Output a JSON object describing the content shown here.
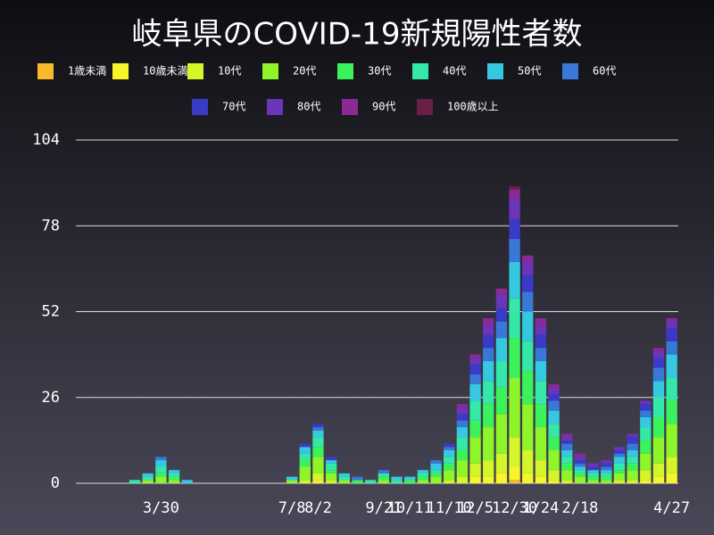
{
  "chart_data": {
    "type": "stacked-bar",
    "title": "岐阜県のCOVID-19新規陽性者数",
    "categories": [
      null,
      null,
      null,
      null,
      null,
      null,
      "3/30",
      null,
      null,
      null,
      null,
      null,
      null,
      null,
      null,
      null,
      "7/8",
      null,
      "8/2",
      null,
      null,
      null,
      null,
      "9/21",
      null,
      "10/11",
      null,
      null,
      "11/10",
      null,
      "12/5",
      null,
      null,
      "12/30",
      null,
      "1/24",
      null,
      null,
      "2/18",
      null,
      null,
      null,
      null,
      null,
      null,
      "4/27"
    ],
    "series": [
      {
        "name": "1歳未満",
        "color": "#f9b92a",
        "values": [
          0,
          0,
          0,
          0,
          0,
          0,
          0,
          0,
          0,
          0,
          0,
          0,
          0,
          0,
          0,
          0,
          0,
          0,
          0,
          0,
          0,
          0,
          0,
          0,
          0,
          0,
          0,
          0,
          0,
          0,
          0,
          0,
          0,
          1,
          0,
          0,
          0,
          0,
          0,
          0,
          0,
          0,
          0,
          0,
          0,
          0
        ]
      },
      {
        "name": "10歳未満",
        "color": "#f7f52a",
        "values": [
          0,
          0,
          0,
          0,
          0,
          0,
          0,
          0,
          0,
          0,
          0,
          0,
          0,
          0,
          0,
          0,
          0,
          0,
          1,
          0,
          0,
          0,
          0,
          0,
          0,
          0,
          0,
          0,
          0,
          0,
          2,
          2,
          3,
          4,
          3,
          2,
          1,
          0,
          0,
          0,
          0,
          0,
          0,
          1,
          2,
          3
        ]
      },
      {
        "name": "10代",
        "color": "#d5f52a",
        "values": [
          0,
          0,
          0,
          0,
          0,
          0,
          0,
          0,
          0,
          0,
          0,
          0,
          0,
          0,
          0,
          0,
          0,
          1,
          2,
          1,
          0,
          0,
          0,
          0,
          0,
          0,
          0,
          0,
          1,
          2,
          4,
          5,
          6,
          9,
          7,
          5,
          3,
          1,
          0,
          0,
          0,
          1,
          1,
          3,
          4,
          5
        ]
      },
      {
        "name": "20代",
        "color": "#8ef52a",
        "values": [
          0,
          0,
          0,
          0,
          0,
          1,
          2,
          1,
          0,
          0,
          0,
          0,
          0,
          0,
          0,
          0,
          1,
          4,
          5,
          2,
          1,
          0,
          0,
          1,
          0,
          0,
          1,
          2,
          3,
          5,
          8,
          10,
          12,
          18,
          14,
          10,
          6,
          3,
          2,
          1,
          1,
          2,
          3,
          5,
          8,
          10
        ]
      },
      {
        "name": "30代",
        "color": "#3cf25a",
        "values": [
          0,
          0,
          0,
          0,
          0,
          0,
          1,
          1,
          0,
          0,
          0,
          0,
          0,
          0,
          0,
          0,
          0,
          2,
          3,
          1,
          0,
          1,
          0,
          1,
          0,
          1,
          1,
          1,
          2,
          3,
          5,
          7,
          8,
          12,
          10,
          7,
          4,
          2,
          1,
          1,
          1,
          1,
          2,
          4,
          6,
          7
        ]
      },
      {
        "name": "40代",
        "color": "#35e8a8",
        "values": [
          0,
          0,
          0,
          0,
          1,
          1,
          2,
          1,
          0,
          0,
          0,
          0,
          0,
          0,
          0,
          0,
          0,
          2,
          3,
          2,
          1,
          0,
          1,
          1,
          1,
          0,
          1,
          1,
          2,
          4,
          6,
          7,
          8,
          12,
          9,
          7,
          4,
          2,
          1,
          1,
          1,
          2,
          2,
          4,
          6,
          7
        ]
      },
      {
        "name": "50代",
        "color": "#35c8e0",
        "values": [
          0,
          0,
          0,
          0,
          0,
          1,
          2,
          1,
          1,
          0,
          0,
          0,
          0,
          0,
          0,
          0,
          1,
          2,
          2,
          1,
          1,
          0,
          0,
          0,
          1,
          1,
          1,
          2,
          2,
          3,
          5,
          6,
          7,
          11,
          9,
          6,
          4,
          2,
          1,
          1,
          1,
          2,
          2,
          3,
          5,
          7
        ]
      },
      {
        "name": "60代",
        "color": "#3a78d8",
        "values": [
          0,
          0,
          0,
          0,
          0,
          0,
          1,
          0,
          0,
          0,
          0,
          0,
          0,
          0,
          0,
          0,
          0,
          0,
          1,
          0,
          0,
          1,
          0,
          1,
          0,
          0,
          0,
          1,
          1,
          2,
          3,
          4,
          5,
          7,
          6,
          4,
          3,
          2,
          1,
          0,
          1,
          1,
          2,
          2,
          4,
          4
        ]
      },
      {
        "name": "70代",
        "color": "#3a3ac8",
        "values": [
          0,
          0,
          0,
          0,
          0,
          0,
          0,
          0,
          0,
          0,
          0,
          0,
          0,
          0,
          0,
          0,
          0,
          1,
          1,
          1,
          0,
          0,
          0,
          0,
          0,
          0,
          0,
          0,
          1,
          2,
          3,
          4,
          4,
          6,
          5,
          4,
          2,
          1,
          1,
          1,
          1,
          1,
          2,
          2,
          3,
          4
        ]
      },
      {
        "name": "80代",
        "color": "#6a35b8",
        "values": [
          0,
          0,
          0,
          0,
          0,
          0,
          0,
          0,
          0,
          0,
          0,
          0,
          0,
          0,
          0,
          0,
          0,
          0,
          0,
          0,
          0,
          0,
          0,
          0,
          0,
          0,
          0,
          0,
          0,
          2,
          2,
          3,
          4,
          6,
          4,
          3,
          2,
          1,
          1,
          1,
          1,
          1,
          1,
          1,
          2,
          2
        ]
      },
      {
        "name": "90代",
        "color": "#8a2a98",
        "values": [
          0,
          0,
          0,
          0,
          0,
          0,
          0,
          0,
          0,
          0,
          0,
          0,
          0,
          0,
          0,
          0,
          0,
          0,
          0,
          0,
          0,
          0,
          0,
          0,
          0,
          0,
          0,
          0,
          0,
          1,
          1,
          2,
          2,
          3,
          2,
          2,
          1,
          1,
          1,
          0,
          0,
          0,
          0,
          0,
          1,
          1
        ]
      },
      {
        "name": "100歳以上",
        "color": "#6a1f48",
        "values": [
          0,
          0,
          0,
          0,
          0,
          0,
          0,
          0,
          0,
          0,
          0,
          0,
          0,
          0,
          0,
          0,
          0,
          0,
          0,
          0,
          0,
          0,
          0,
          0,
          0,
          0,
          0,
          0,
          0,
          0,
          0,
          0,
          0,
          1,
          0,
          0,
          0,
          0,
          0,
          0,
          0,
          0,
          0,
          0,
          0,
          0
        ]
      }
    ],
    "ylim": [
      0,
      104
    ],
    "yticks": [
      0,
      26,
      52,
      78,
      104
    ],
    "grid": true
  }
}
